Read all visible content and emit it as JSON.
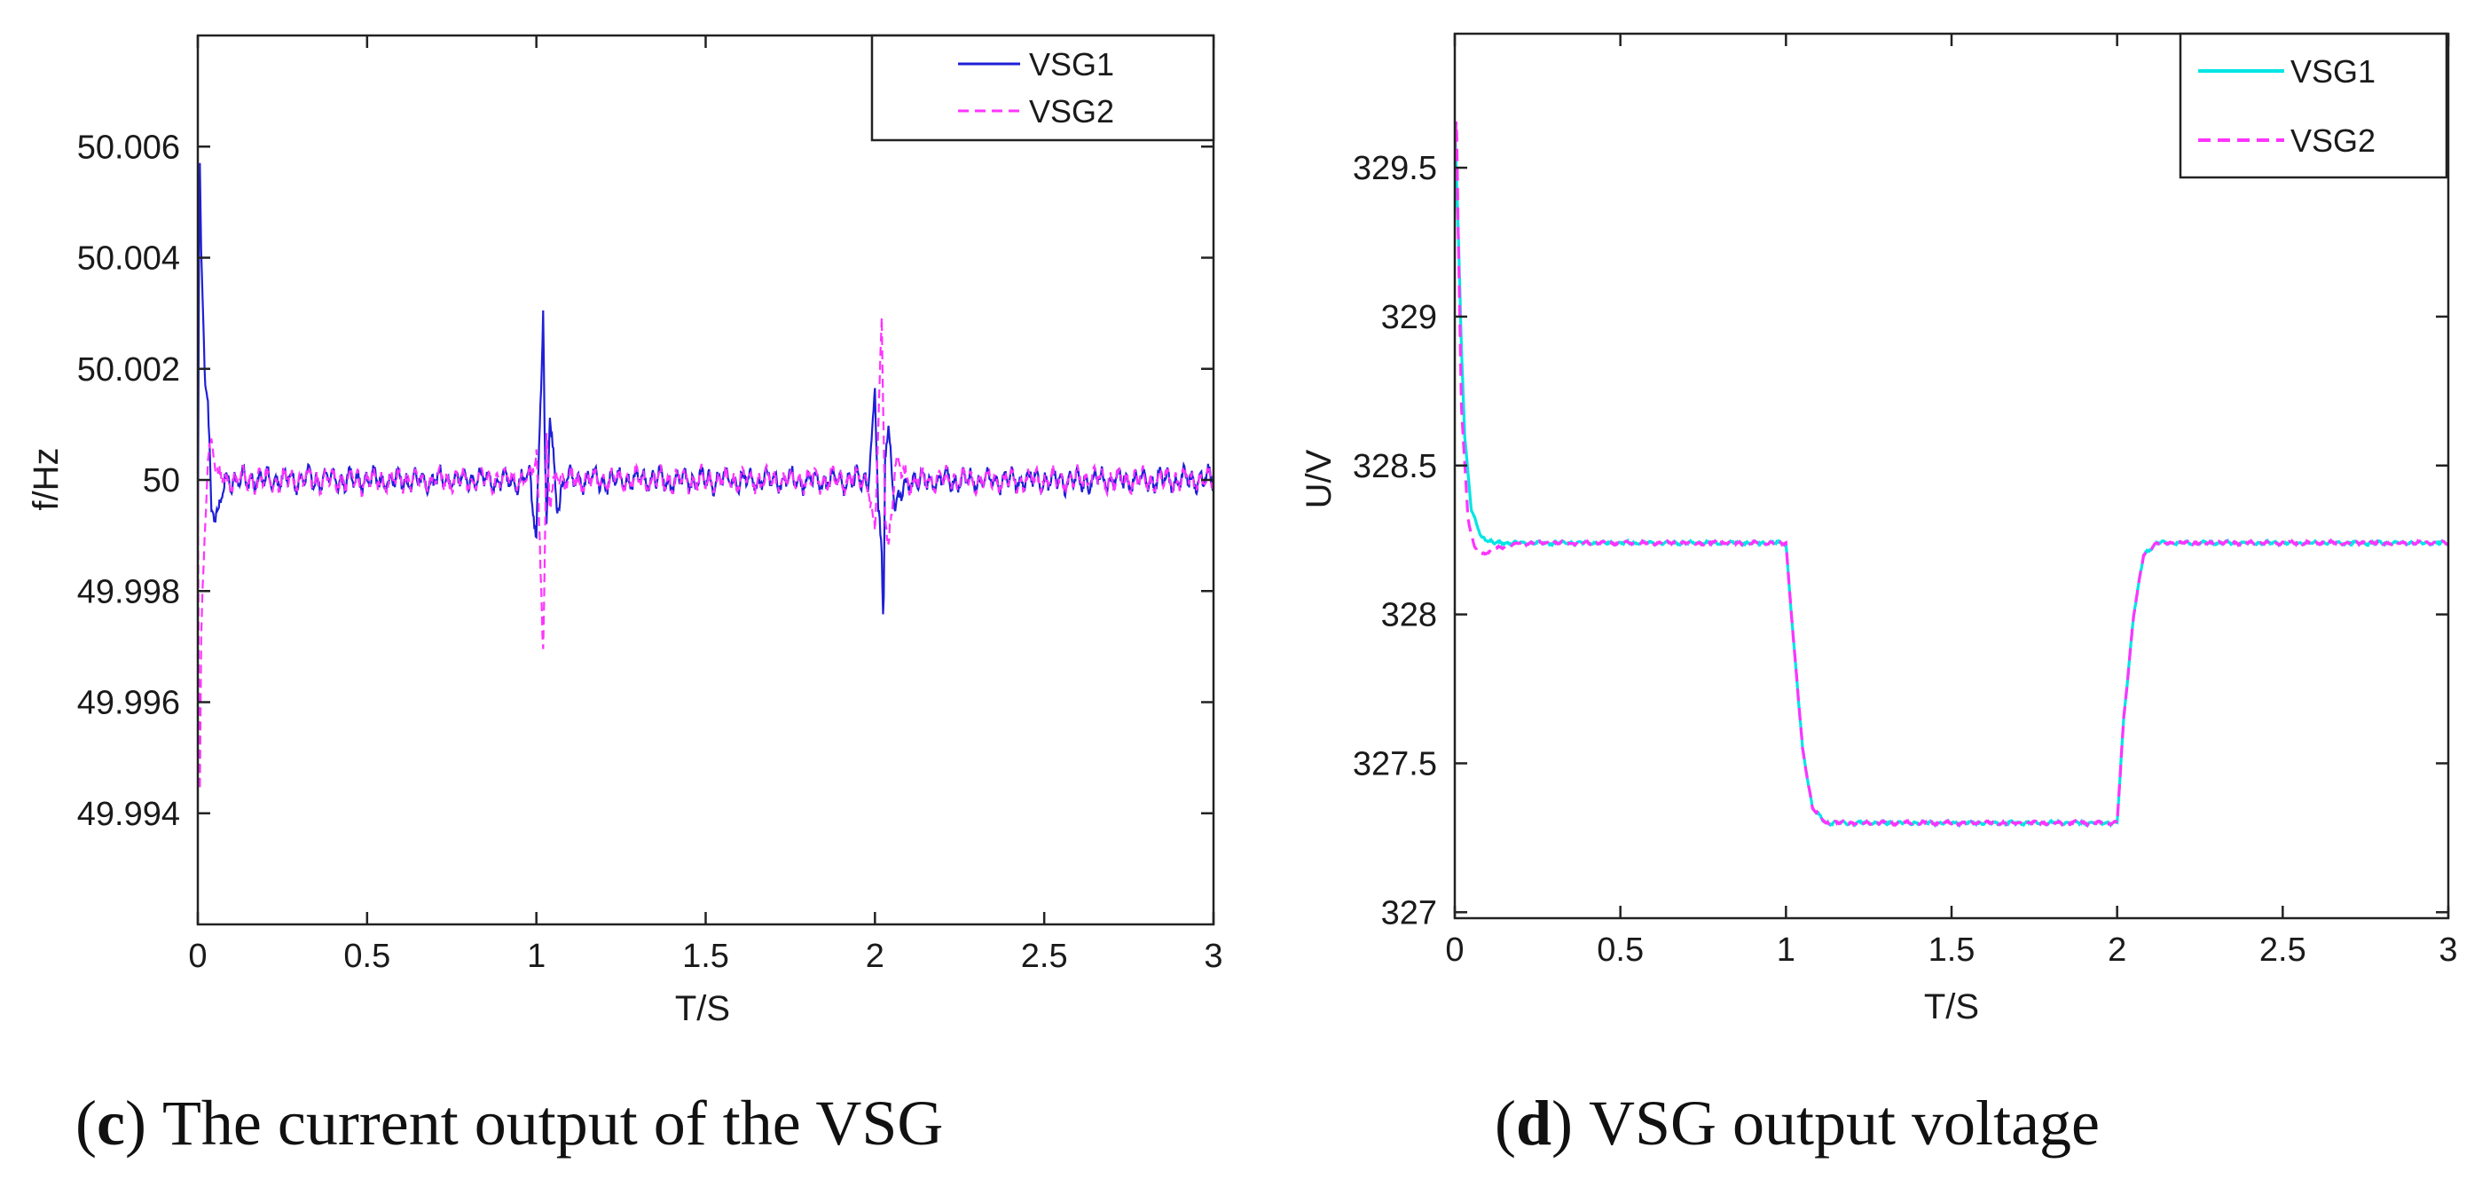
{
  "chart_data": [
    {
      "type": "line",
      "caption_letter": "c",
      "caption_text": "The current output of the VSG",
      "caption_open": "(",
      "caption_close": ")",
      "xlabel": "T/S",
      "ylabel": "f/Hz",
      "xlim": [
        0,
        3
      ],
      "ylim": [
        49.992,
        50.008
      ],
      "xticks": [
        0,
        0.5,
        1,
        1.5,
        2,
        2.5,
        3
      ],
      "xtick_labels": [
        "0",
        "0.5",
        "1",
        "1.5",
        "2",
        "2.5",
        "3"
      ],
      "yticks": [
        49.994,
        49.996,
        49.998,
        50,
        50.002,
        50.004,
        50.006
      ],
      "ytick_labels": [
        "49.994",
        "49.996",
        "49.998",
        "50",
        "50.002",
        "50.004",
        "50.006"
      ],
      "legend_position": "top-right",
      "series": [
        {
          "name": "VSG1",
          "color": "#1f1fd6",
          "dash": "solid",
          "x": [
            0,
            0.005,
            0.01,
            0.02,
            0.03,
            0.04,
            0.06,
            0.08,
            0.98,
            1.0,
            1.01,
            1.02,
            1.025,
            1.03,
            1.04,
            1.06,
            1.08,
            1.98,
            2.0,
            2.01,
            2.02,
            2.025,
            2.03,
            2.04,
            2.06,
            2.1,
            3.0
          ],
          "y": [
            49.999,
            50.006,
            50.004,
            50.002,
            50.0015,
            49.9995,
            49.9993,
            50.0,
            50.0,
            49.999,
            50.001,
            50.0031,
            50.0005,
            49.999,
            50.0012,
            49.9995,
            50.0,
            50.0,
            50.0015,
            49.9995,
            49.9985,
            49.9972,
            50.0005,
            50.001,
            49.9995,
            50.0,
            50.0
          ],
          "noise_amplitude": 0.0003
        },
        {
          "name": "VSG2",
          "color": "#ff33ff",
          "dash": "dashed",
          "x": [
            0,
            0.005,
            0.01,
            0.02,
            0.03,
            0.04,
            0.06,
            0.08,
            0.98,
            1.0,
            1.01,
            1.02,
            1.025,
            1.03,
            1.04,
            1.06,
            1.08,
            1.98,
            2.0,
            2.01,
            2.02,
            2.025,
            2.03,
            2.04,
            2.06,
            2.1,
            3.0
          ],
          "y": [
            50.0,
            49.9938,
            49.997,
            49.999,
            50.0005,
            50.0007,
            50.0,
            50.0,
            50.0,
            50.0005,
            49.999,
            49.997,
            49.9985,
            50.0007,
            49.9995,
            50.0002,
            50.0,
            50.0,
            49.999,
            50.001,
            50.0027,
            50.001,
            49.9995,
            49.9988,
            50.0003,
            50.0,
            50.0
          ],
          "noise_amplitude": 0.0003
        }
      ]
    },
    {
      "type": "line",
      "caption_letter": "d",
      "caption_text": "VSG output voltage",
      "caption_open": "(",
      "caption_close": ")",
      "xlabel": "T/S",
      "ylabel": "U/V",
      "xlim": [
        0,
        3
      ],
      "ylim": [
        326.98,
        329.95
      ],
      "xticks": [
        0,
        0.5,
        1,
        1.5,
        2,
        2.5,
        3
      ],
      "xtick_labels": [
        "0",
        "0.5",
        "1",
        "1.5",
        "2",
        "2.5",
        "3"
      ],
      "yticks": [
        327,
        327.5,
        328,
        328.5,
        329,
        329.5
      ],
      "ytick_labels": [
        "327",
        "327.5",
        "328",
        "328.5",
        "329",
        "329.5"
      ],
      "legend_position": "top-right",
      "series": [
        {
          "name": "VSG1",
          "color": "#00e5e5",
          "dash": "solid",
          "x": [
            0,
            0.01,
            0.02,
            0.03,
            0.05,
            0.08,
            0.12,
            0.2,
            1.0,
            1.02,
            1.05,
            1.08,
            1.12,
            2.0,
            2.02,
            2.05,
            2.08,
            2.12,
            3.0
          ],
          "y": [
            329.65,
            329.3,
            328.9,
            328.6,
            328.35,
            328.26,
            328.24,
            328.24,
            328.24,
            327.95,
            327.55,
            327.35,
            327.3,
            327.3,
            327.65,
            328.0,
            328.2,
            328.24,
            328.24
          ],
          "noise_amplitude": 0.008
        },
        {
          "name": "VSG2",
          "color": "#ff33ff",
          "dash": "dashed",
          "x": [
            0,
            0.005,
            0.01,
            0.02,
            0.04,
            0.06,
            0.08,
            0.12,
            0.2,
            1.0,
            1.02,
            1.05,
            1.08,
            1.12,
            2.0,
            2.02,
            2.05,
            2.08,
            2.12,
            3.0
          ],
          "y": [
            329.55,
            329.68,
            329.3,
            328.7,
            328.32,
            328.22,
            328.2,
            328.22,
            328.24,
            328.24,
            327.95,
            327.55,
            327.35,
            327.3,
            327.3,
            327.65,
            328.0,
            328.2,
            328.24,
            328.24
          ],
          "noise_amplitude": 0.008
        }
      ]
    }
  ]
}
